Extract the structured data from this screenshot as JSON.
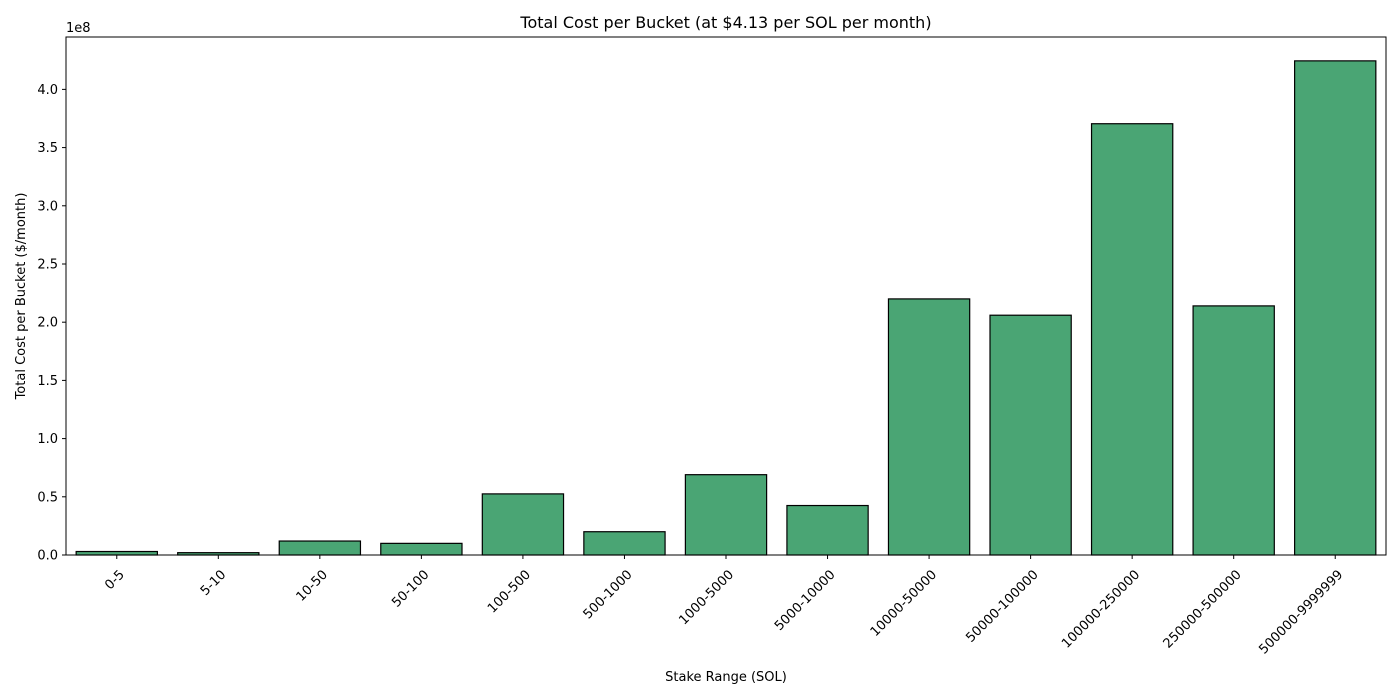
{
  "chart_data": {
    "type": "bar",
    "title": "Total Cost per Bucket (at $4.13 per SOL per month)",
    "xlabel": "Stake Range (SOL)",
    "ylabel": "Total Cost per Bucket ($/month)",
    "y_offset_label": "1e8",
    "y_scale": 100000000,
    "categories": [
      "0-5",
      "5-10",
      "10-50",
      "50-100",
      "100-500",
      "500-1000",
      "1000-5000",
      "5000-10000",
      "10000-50000",
      "50000-100000",
      "100000-250000",
      "250000-500000",
      "500000-9999999"
    ],
    "values": [
      3000000,
      2000000,
      12000000,
      10000000,
      52500000,
      20000000,
      69000000,
      42500000,
      220000000,
      206000000,
      370500000,
      214000000,
      424500000
    ],
    "ylim": [
      0,
      445000000
    ],
    "yticks": [
      0,
      50000000,
      100000000,
      150000000,
      200000000,
      250000000,
      300000000,
      350000000,
      400000000
    ],
    "ytick_labels": [
      "0.0",
      "0.5",
      "1.0",
      "1.5",
      "2.0",
      "2.5",
      "3.0",
      "3.5",
      "4.0"
    ],
    "bar_color": "#4aa574",
    "edge_color": "#000000",
    "grid": false,
    "legend": "none"
  }
}
